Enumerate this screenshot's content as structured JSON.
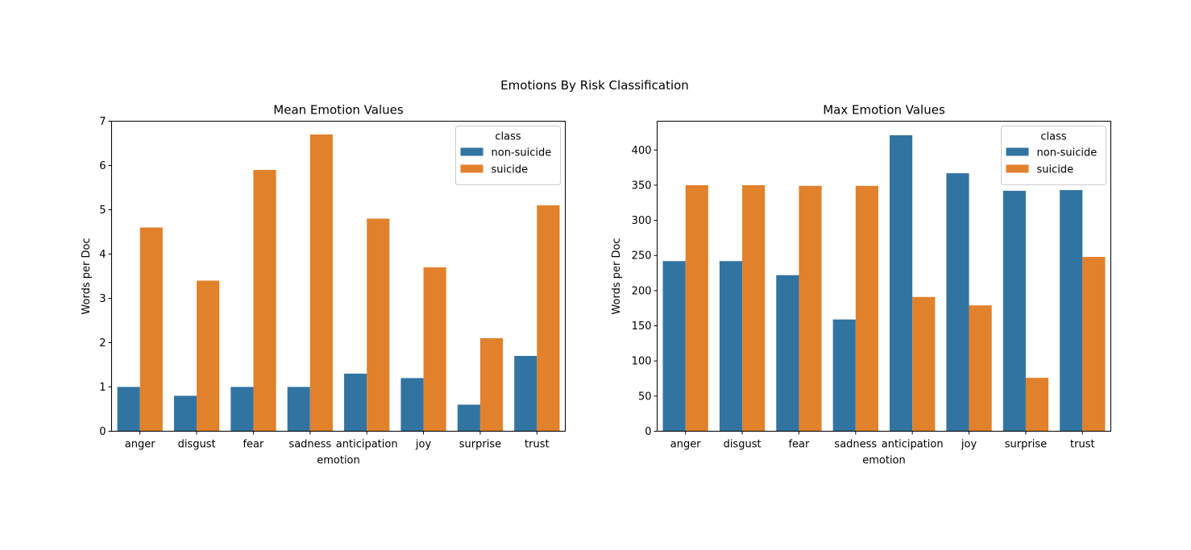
{
  "figure": {
    "suptitle": "Emotions By Risk Classification",
    "colors": {
      "non-suicide": "#3274a1",
      "suicide": "#e1812c"
    }
  },
  "chart_data": [
    {
      "type": "bar",
      "title": "Mean Emotion Values",
      "xlabel": "emotion",
      "ylabel": "Words per Doc",
      "categories": [
        "anger",
        "disgust",
        "fear",
        "sadness",
        "anticipation",
        "joy",
        "surprise",
        "trust"
      ],
      "ylim": [
        0,
        7
      ],
      "yticks": [
        0,
        1,
        2,
        3,
        4,
        5,
        6,
        7
      ],
      "legend": {
        "title": "class",
        "placement": "top-right"
      },
      "grid": false,
      "series": [
        {
          "name": "non-suicide",
          "color": "#3274a1",
          "values": [
            1.0,
            0.8,
            1.0,
            1.0,
            1.3,
            1.2,
            0.6,
            1.7
          ]
        },
        {
          "name": "suicide",
          "color": "#e1812c",
          "values": [
            4.6,
            3.4,
            5.9,
            6.7,
            4.8,
            3.7,
            2.1,
            5.1
          ]
        }
      ]
    },
    {
      "type": "bar",
      "title": "Max Emotion Values",
      "xlabel": "emotion",
      "ylabel": "Words per Doc",
      "categories": [
        "anger",
        "disgust",
        "fear",
        "sadness",
        "anticipation",
        "joy",
        "surprise",
        "trust"
      ],
      "ylim": [
        0,
        441
      ],
      "yticks": [
        0,
        50,
        100,
        150,
        200,
        250,
        300,
        350,
        400
      ],
      "legend": {
        "title": "class",
        "placement": "top-right"
      },
      "grid": false,
      "series": [
        {
          "name": "non-suicide",
          "color": "#3274a1",
          "values": [
            242,
            242,
            222,
            159,
            421,
            367,
            342,
            343
          ]
        },
        {
          "name": "suicide",
          "color": "#e1812c",
          "values": [
            350,
            350,
            349,
            349,
            191,
            179,
            76,
            248
          ]
        }
      ]
    }
  ]
}
